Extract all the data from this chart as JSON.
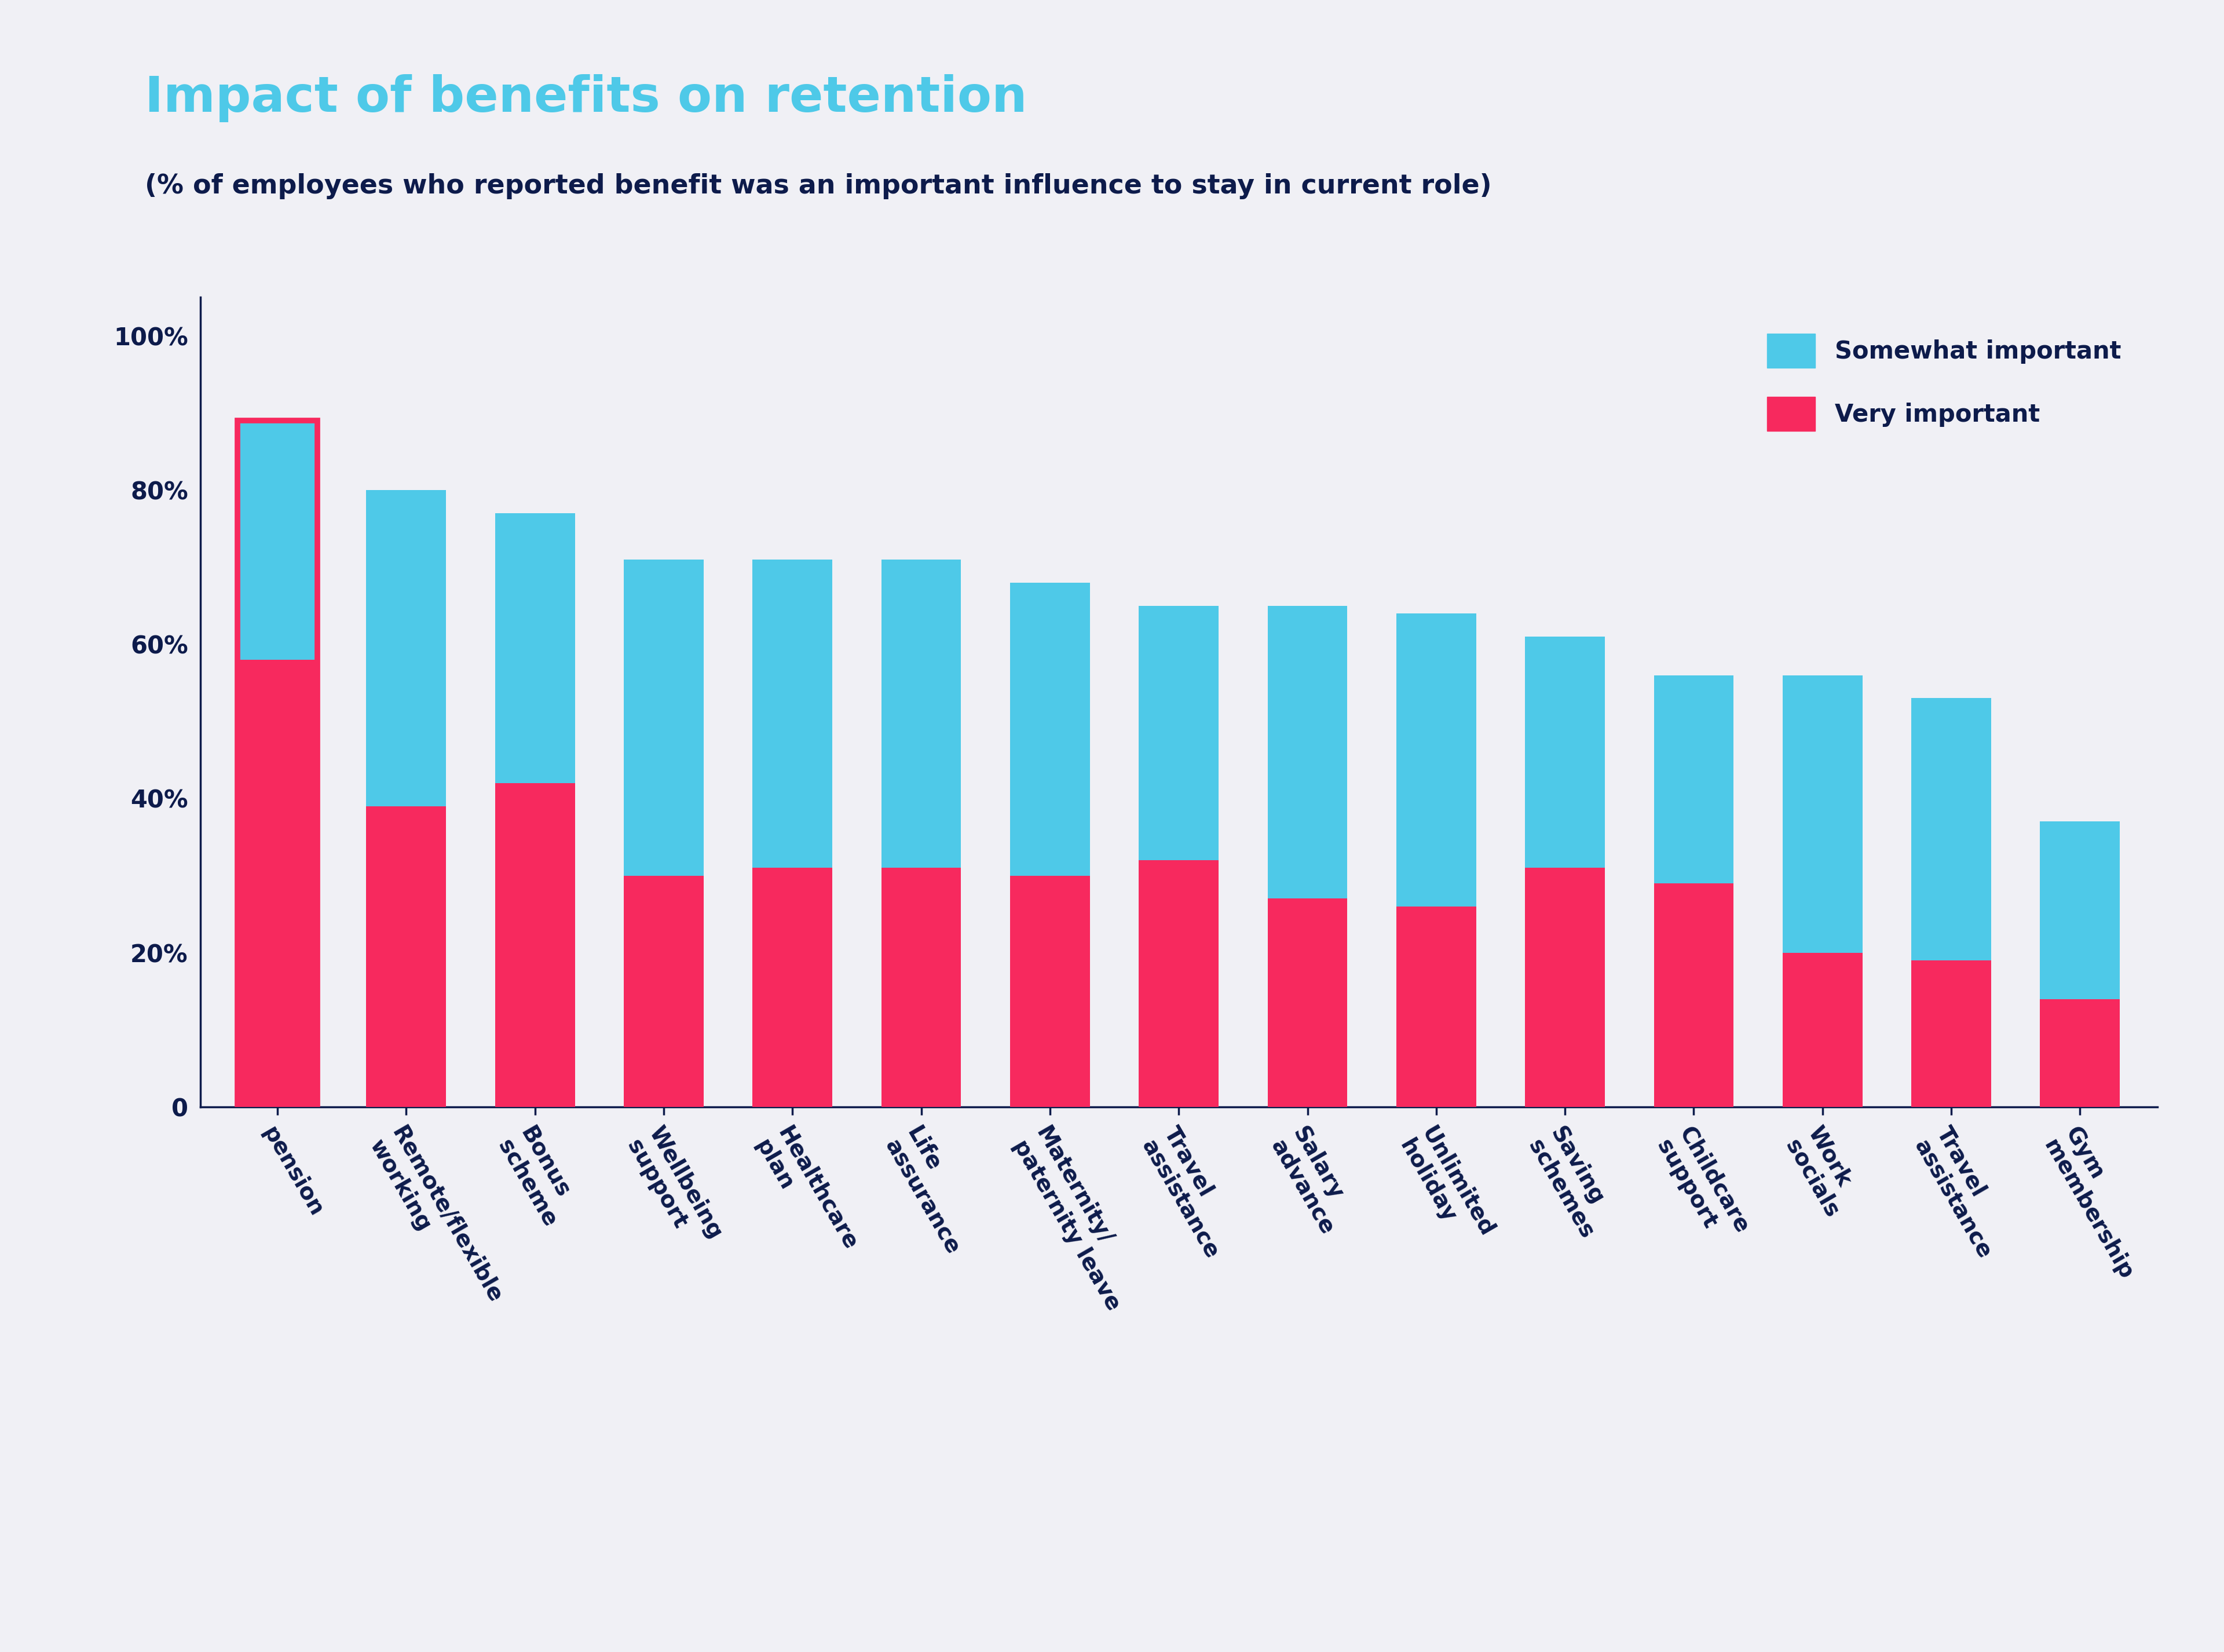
{
  "categories": [
    "pension",
    "Remote/flexible\nworking",
    "Bonus\nscheme",
    "Wellbeing\nsupport",
    "Healthcare\nplan",
    "Life\nassurance",
    "Maternity/\npaternity leave",
    "Travel\nassistance",
    "Salary\nadvance",
    "Unlimited\nholiday",
    "Saving\nschemes",
    "Childcare\nsupport",
    "Work\nsocials",
    "Travel\nassistance",
    "Gym\nmembership"
  ],
  "very_important": [
    58,
    39,
    42,
    30,
    31,
    31,
    30,
    32,
    27,
    26,
    31,
    29,
    20,
    19,
    14
  ],
  "somewhat_important": [
    31,
    41,
    35,
    41,
    40,
    40,
    38,
    33,
    38,
    38,
    30,
    27,
    36,
    34,
    23
  ],
  "title": "Impact of benefits on retention",
  "subtitle": "(% of employees who reported benefit was an important influence to stay in current role)",
  "color_very": "#F7295E",
  "color_somewhat": "#4EC9E8",
  "bg_color": "#F0F0F5",
  "title_color": "#4EC9E8",
  "subtitle_color": "#0D1B4B",
  "axis_color": "#0D1B4B",
  "tick_color": "#0D1B4B",
  "first_bar_outline": "#F7295E",
  "first_label_color": "#F7295E",
  "legend_somewhat": "Somewhat important",
  "legend_very": "Very important"
}
